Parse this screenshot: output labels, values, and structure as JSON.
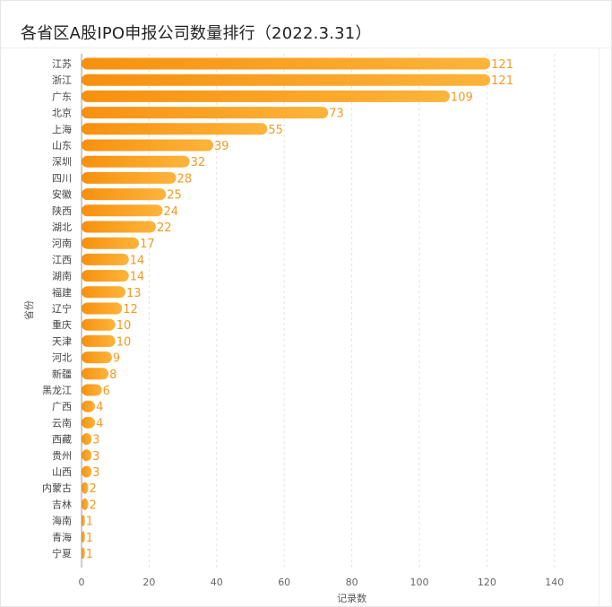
{
  "title": "各省区A股IPO申报公司数量排行（2022.3.31）",
  "colors": {
    "bar_start": "#f7900f",
    "bar_end": "#fdb43a",
    "label": "#f39a1e",
    "grid": "#e3e3e3"
  },
  "chart_data": {
    "type": "bar",
    "orientation": "horizontal",
    "title": "各省区A股IPO申报公司数量排行（2022.3.31）",
    "xlabel": "记录数",
    "ylabel": "省份",
    "xlim": [
      0,
      140
    ],
    "xticks": [
      0,
      20,
      40,
      60,
      80,
      100,
      120,
      140
    ],
    "grid": true,
    "categories": [
      "江苏",
      "浙江",
      "广东",
      "北京",
      "上海",
      "山东",
      "深圳",
      "四川",
      "安徽",
      "陕西",
      "湖北",
      "河南",
      "江西",
      "湖南",
      "福建",
      "辽宁",
      "重庆",
      "天津",
      "河北",
      "新疆",
      "黑龙江",
      "广西",
      "云南",
      "西藏",
      "贵州",
      "山西",
      "内蒙古",
      "吉林",
      "海南",
      "青海",
      "宁夏"
    ],
    "values": [
      121,
      121,
      109,
      73,
      55,
      39,
      32,
      28,
      25,
      24,
      22,
      17,
      14,
      14,
      13,
      12,
      10,
      10,
      9,
      8,
      6,
      4,
      4,
      3,
      3,
      3,
      2,
      2,
      1,
      1,
      1
    ]
  }
}
